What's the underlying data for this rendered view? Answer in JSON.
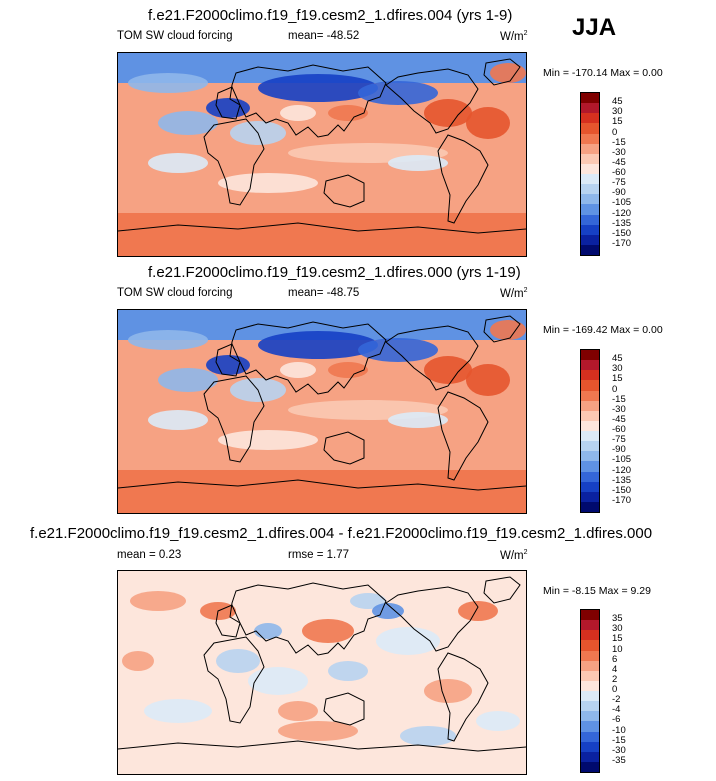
{
  "season": "JJA",
  "panels": [
    {
      "title": "f.e21.F2000climo.f19_f19.cesm2_1.dfires.004 (yrs 1-9)",
      "left_label": "TOM SW cloud forcing",
      "mid_label": "mean= -48.52",
      "units": "W/m",
      "units_sup": "2",
      "minmax": "Min = -170.14 Max =   0.00",
      "colorbar_labels": [
        "45",
        "30",
        "15",
        "0",
        "-15",
        "-30",
        "-45",
        "-60",
        "-75",
        "-90",
        "-105",
        "-120",
        "-135",
        "-150",
        "-170"
      ],
      "colorbar_colors": [
        "#7f0000",
        "#b2182b",
        "#d6301f",
        "#e6552d",
        "#f07850",
        "#f6a283",
        "#fbc9b3",
        "#fde6dc",
        "#dceaf7",
        "#b8d3f0",
        "#8fb7ea",
        "#5f92e3",
        "#3466d8",
        "#1640c4",
        "#0a21a0",
        "#000a6e"
      ],
      "map_style": "full"
    },
    {
      "title": "f.e21.F2000climo.f19_f19.cesm2_1.dfires.000 (yrs 1-19)",
      "left_label": "TOM SW cloud forcing",
      "mid_label": "mean= -48.75",
      "units": "W/m",
      "units_sup": "2",
      "minmax": "Min = -169.42 Max =   0.00",
      "colorbar_labels": [
        "45",
        "30",
        "15",
        "0",
        "-15",
        "-30",
        "-45",
        "-60",
        "-75",
        "-90",
        "-105",
        "-120",
        "-135",
        "-150",
        "-170"
      ],
      "colorbar_colors": [
        "#7f0000",
        "#b2182b",
        "#d6301f",
        "#e6552d",
        "#f07850",
        "#f6a283",
        "#fbc9b3",
        "#fde6dc",
        "#dceaf7",
        "#b8d3f0",
        "#8fb7ea",
        "#5f92e3",
        "#3466d8",
        "#1640c4",
        "#0a21a0",
        "#000a6e"
      ],
      "map_style": "full"
    },
    {
      "title": "f.e21.F2000climo.f19_f19.cesm2_1.dfires.004 - f.e21.F2000climo.f19_f19.cesm2_1.dfires.000",
      "left_label": "mean =  0.23",
      "mid_label": "rmse =  1.77",
      "units": "W/m",
      "units_sup": "2",
      "minmax": "Min = -8.15 Max =  9.29",
      "colorbar_labels": [
        "35",
        "30",
        "15",
        "10",
        "6",
        "4",
        "2",
        "0",
        "-2",
        "-4",
        "-6",
        "-10",
        "-15",
        "-30",
        "-35"
      ],
      "colorbar_colors": [
        "#7f0000",
        "#b2182b",
        "#d6301f",
        "#e6552d",
        "#f07850",
        "#f6a283",
        "#fbc9b3",
        "#fde6dc",
        "#dceaf7",
        "#b8d3f0",
        "#8fb7ea",
        "#5f92e3",
        "#3466d8",
        "#1640c4",
        "#0a21a0",
        "#000a6e"
      ],
      "map_style": "diff"
    }
  ]
}
